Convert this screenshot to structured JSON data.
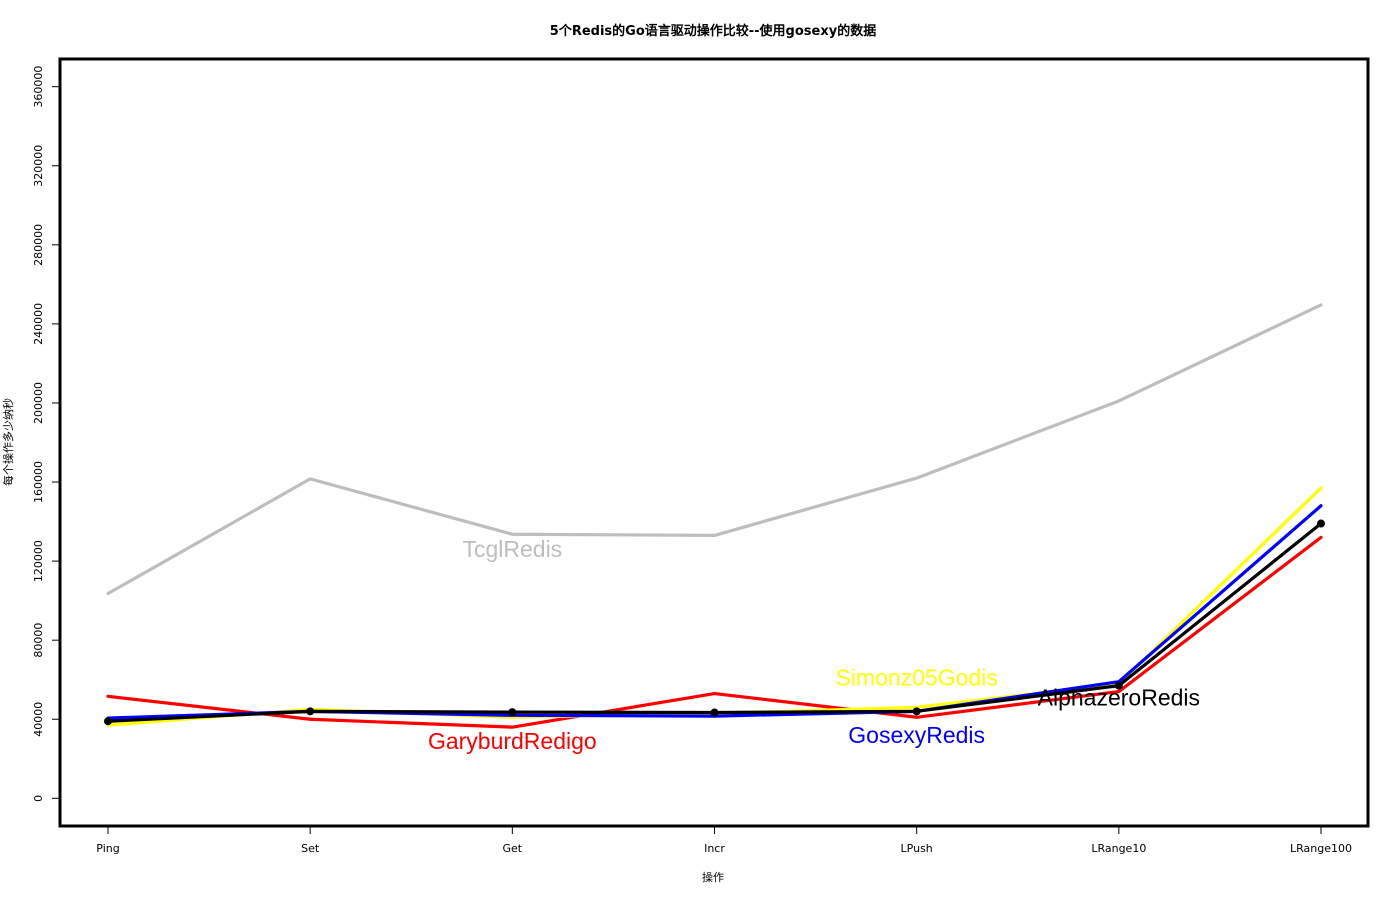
{
  "chart_data": {
    "type": "line",
    "title": "5个Redis的Go语言驱动操作比较--使用gosexy的数据",
    "xlabel": "操作",
    "ylabel": "每个操作多少纳秒",
    "categories": [
      "Ping",
      "Set",
      "Get",
      "Incr",
      "LPush",
      "LRange10",
      "LRange100"
    ],
    "y_ticks": [
      "0",
      "40000",
      "80000",
      "120000",
      "160000",
      "200000",
      "240000",
      "280000",
      "320000",
      "360000"
    ],
    "y_tick_values": [
      0,
      40000,
      80000,
      120000,
      160000,
      200000,
      240000,
      280000,
      320000,
      360000
    ],
    "ylim": [
      -14000,
      374000
    ],
    "grid": false,
    "legend": "direct labels on the lines",
    "series": [
      {
        "name": "TcglRedis",
        "color": "#bebebe",
        "values": [
          103600,
          161600,
          133600,
          133000,
          162000,
          201000,
          249600
        ],
        "markers": false
      },
      {
        "name": "GaryburdRedigo",
        "color": "#ff0000",
        "values": [
          51600,
          40000,
          36000,
          53000,
          41000,
          54000,
          132000
        ],
        "markers": false
      },
      {
        "name": "Simonz05Godis",
        "color": "#ffff00",
        "values": [
          37000,
          45000,
          41000,
          43000,
          46000,
          58000,
          157000
        ],
        "markers": false
      },
      {
        "name": "GosexyRedis",
        "color": "#0000ff",
        "values": [
          40600,
          44000,
          42000,
          41600,
          44000,
          59000,
          148000
        ],
        "markers": false
      },
      {
        "name": "AlphazeroRedis",
        "color": "#000000",
        "values": [
          39000,
          44000,
          43600,
          43400,
          44000,
          57000,
          139000
        ],
        "markers": true
      }
    ],
    "annotations": [
      {
        "text": "TcglRedis",
        "color": "#bebebe",
        "x": "Get",
        "y": 126000
      },
      {
        "text": "GaryburdRedigo",
        "color": "#ff0000",
        "x": "Get",
        "y": 29000
      },
      {
        "text": "Simonz05Godis",
        "color": "#ffff00",
        "x": "LPush",
        "y": 61000
      },
      {
        "text": "GosexyRedis",
        "color": "#0000ff",
        "x": "LPush",
        "y": 32000
      },
      {
        "text": "AlphazeroRedis",
        "color": "#000000",
        "x": "LRange10",
        "y": 51000
      }
    ]
  }
}
